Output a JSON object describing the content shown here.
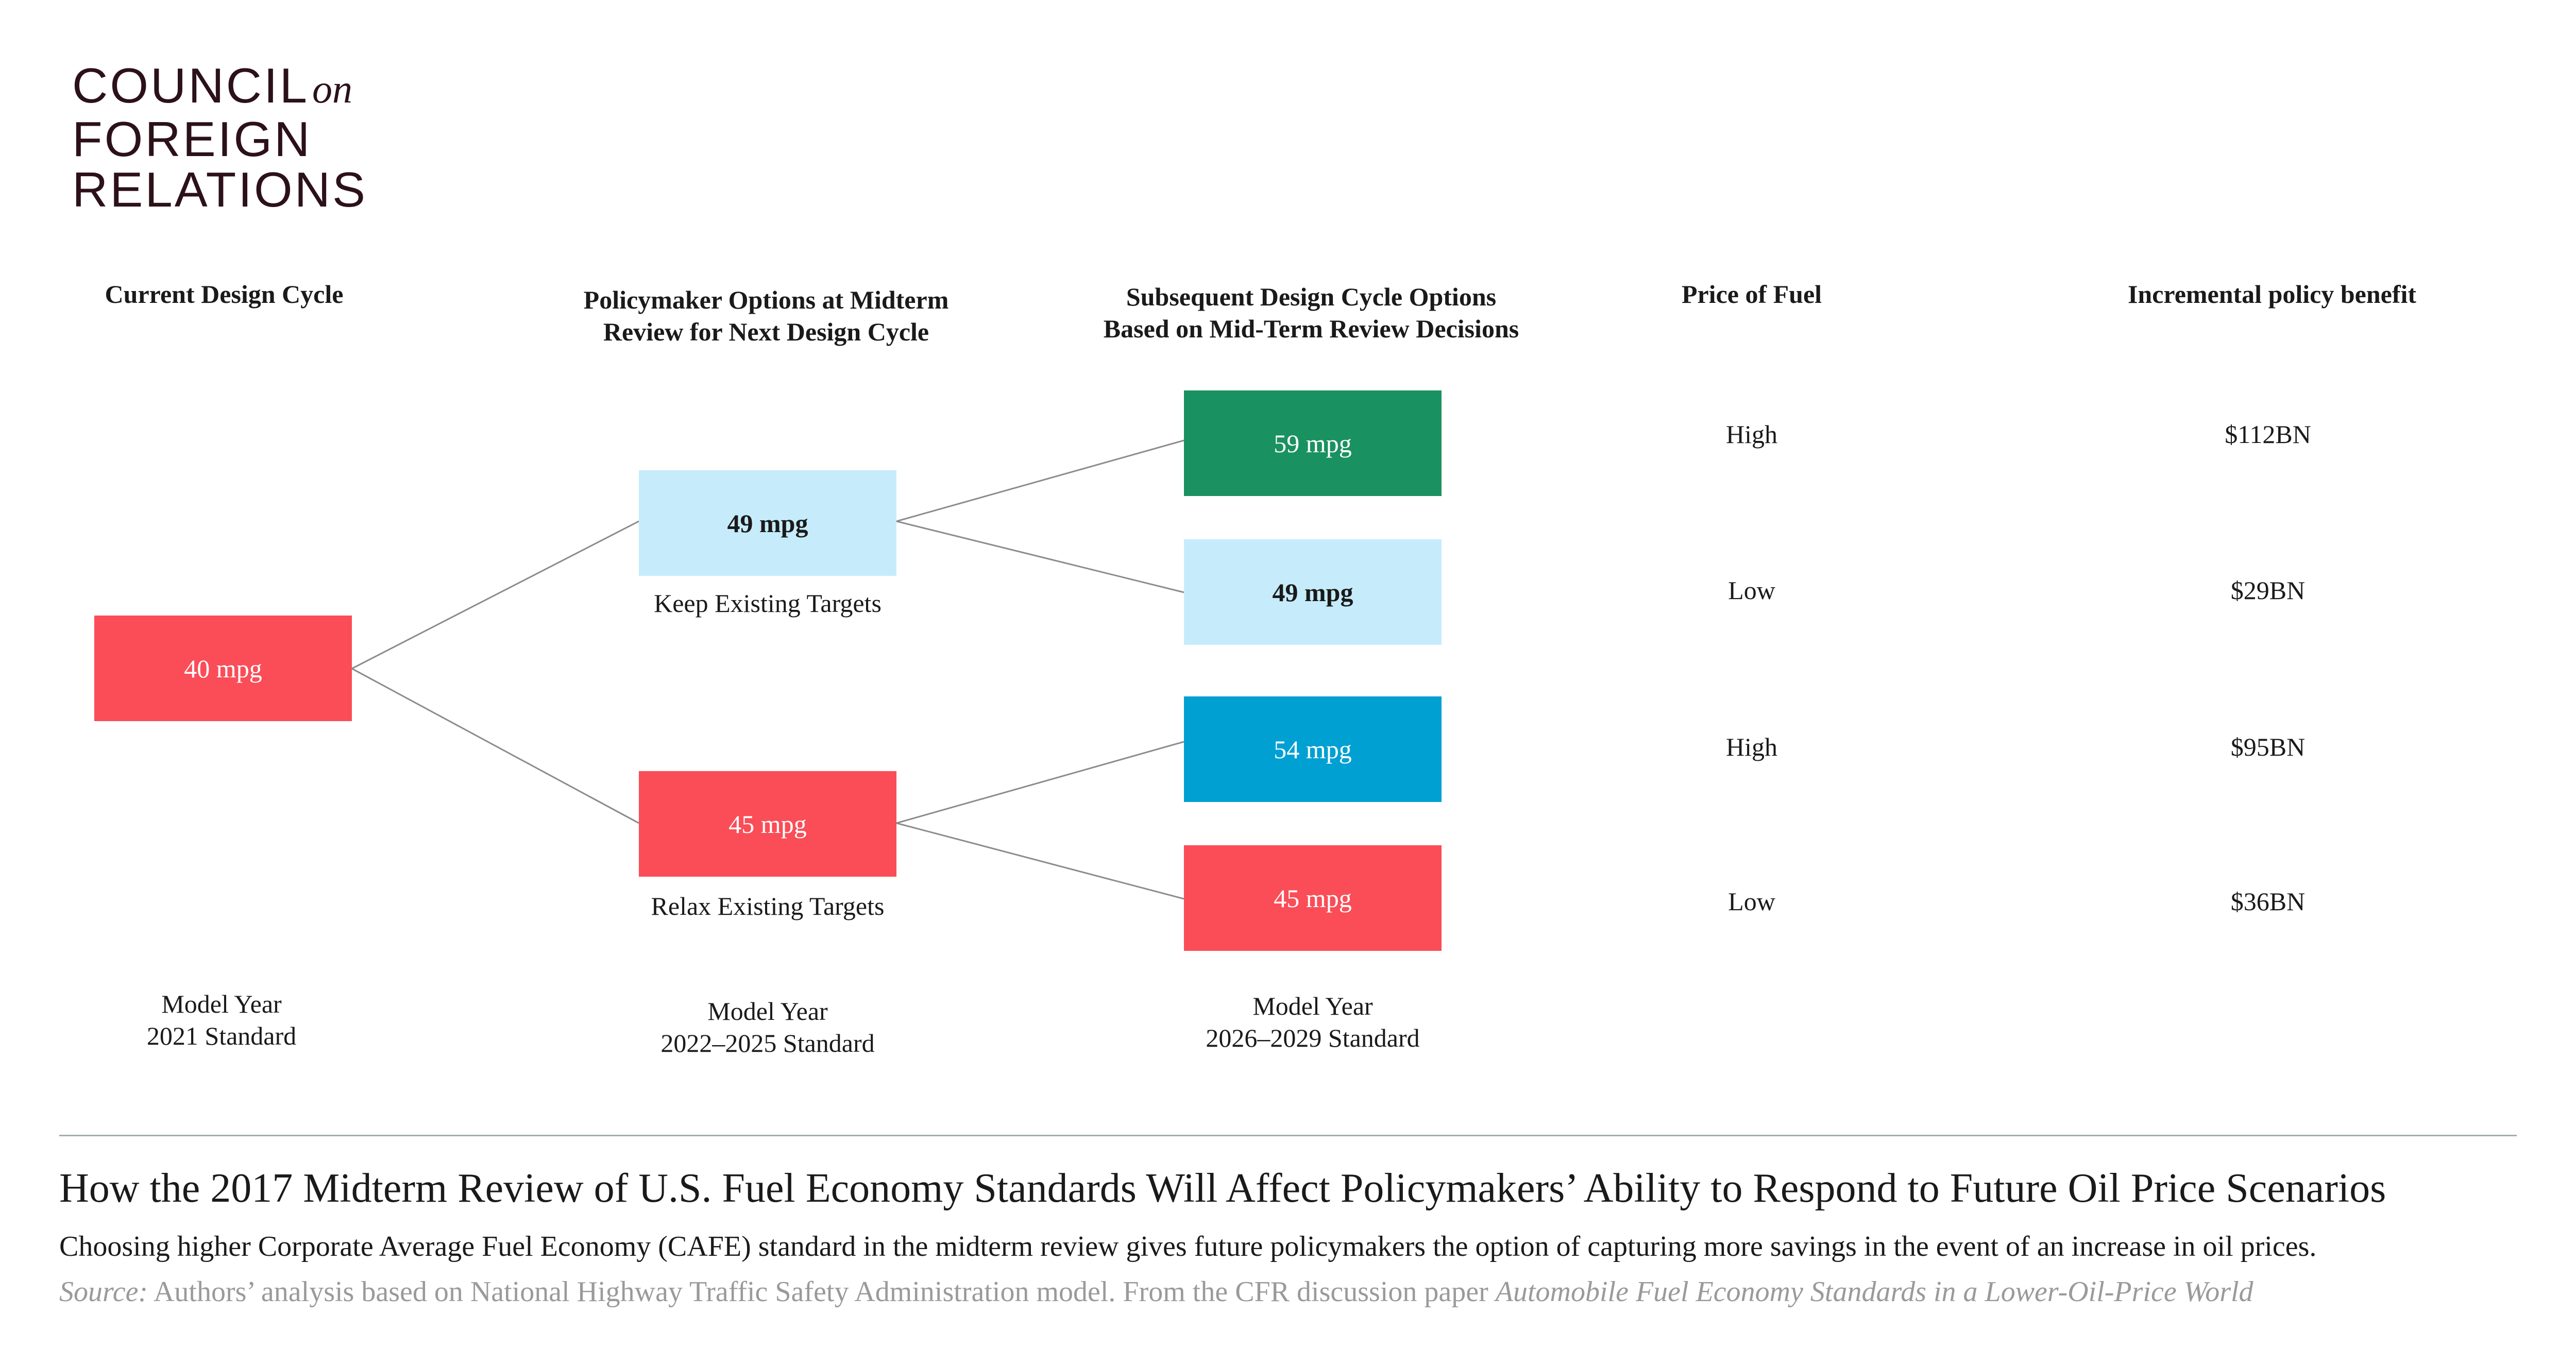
{
  "logo": {
    "line1": "COUNCIL",
    "line1_suffix": "on",
    "line2": "FOREIGN",
    "line3": "RELATIONS"
  },
  "headers": {
    "current_cycle": "Current Design Cycle",
    "midterm_line1": "Policymaker Options at Midterm",
    "midterm_line2": "Review for Next Design Cycle",
    "subsequent_line1": "Subsequent Design Cycle Options",
    "subsequent_line2": "Based on Mid-Term Review Decisions",
    "price_of_fuel": "Price of Fuel",
    "benefit": "Incremental policy benefit"
  },
  "stage1": {
    "value": "40 mpg",
    "year_line1": "Model Year",
    "year_line2": "2021 Standard"
  },
  "stage2": {
    "keep": {
      "value": "49 mpg",
      "label": "Keep Existing Targets"
    },
    "relax": {
      "value": "45 mpg",
      "label": "Relax Existing Targets"
    },
    "year_line1": "Model Year",
    "year_line2": "2022–2025 Standard"
  },
  "stage3": {
    "options": [
      {
        "value": "59 mpg",
        "fuel_price": "High",
        "benefit": "$112BN"
      },
      {
        "value": "49 mpg",
        "fuel_price": "Low",
        "benefit": "$29BN"
      },
      {
        "value": "54 mpg",
        "fuel_price": "High",
        "benefit": "$95BN"
      },
      {
        "value": "45 mpg",
        "fuel_price": "Low",
        "benefit": "$36BN"
      }
    ],
    "year_line1": "Model Year",
    "year_line2": "2026–2029 Standard"
  },
  "colors": {
    "red": "#fa4d57",
    "light_blue": "#c6ecfb",
    "green": "#1a9160",
    "blue": "#01a0d3",
    "connector": "#8c8c8c",
    "logo": "#2c1119"
  },
  "footer": {
    "title": "How the 2017 Midterm Review of U.S. Fuel Economy Standards Will Affect Policymakers’ Ability to Respond to Future Oil Price Scenarios",
    "subtitle": "Choosing higher Corporate Average Fuel Economy (CAFE) standard in the midterm review gives future policymakers the option of capturing more savings in the event of an increase in oil prices.",
    "source_label": "Source:",
    "source_text": " Authors’ analysis based on National Highway Traffic Safety Administration model. From the CFR discussion paper ",
    "source_title": "Automobile Fuel Economy Standards in a Lower-Oil-Price World"
  }
}
